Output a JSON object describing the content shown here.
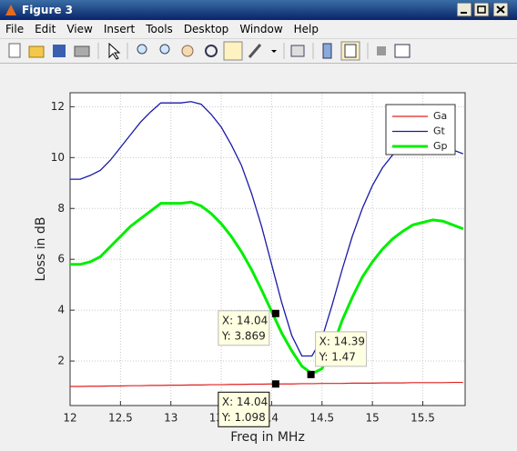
{
  "window": {
    "title": "Figure 3",
    "menu": [
      "File",
      "Edit",
      "View",
      "Insert",
      "Tools",
      "Desktop",
      "Window",
      "Help"
    ]
  },
  "chart_data": {
    "type": "line",
    "xlabel": "Freq in MHz",
    "ylabel": "Loss in dB",
    "x": [
      12,
      12.1,
      12.2,
      12.3,
      12.4,
      12.5,
      12.6,
      12.7,
      12.8,
      12.9,
      13,
      13.1,
      13.2,
      13.3,
      13.4,
      13.5,
      13.6,
      13.7,
      13.8,
      13.9,
      14,
      14.1,
      14.2,
      14.3,
      14.4,
      14.5,
      14.6,
      14.7,
      14.8,
      14.9,
      15,
      15.1,
      15.2,
      15.3,
      15.4,
      15.5,
      15.6,
      15.7,
      15.8,
      15.9
    ],
    "series": [
      {
        "name": "Ga",
        "color": "#e02020",
        "width": 1.2,
        "values": [
          1.0,
          1.0,
          1.01,
          1.01,
          1.02,
          1.02,
          1.03,
          1.03,
          1.04,
          1.04,
          1.05,
          1.05,
          1.06,
          1.06,
          1.07,
          1.07,
          1.08,
          1.08,
          1.09,
          1.09,
          1.098,
          1.1,
          1.1,
          1.11,
          1.11,
          1.12,
          1.12,
          1.12,
          1.13,
          1.13,
          1.13,
          1.14,
          1.14,
          1.14,
          1.15,
          1.15,
          1.15,
          1.15,
          1.16,
          1.16
        ]
      },
      {
        "name": "Gt",
        "color": "#1a1aa8",
        "width": 1.3,
        "values": [
          9.15,
          9.15,
          9.3,
          9.5,
          9.9,
          10.4,
          10.9,
          11.4,
          11.8,
          12.15,
          12.15,
          12.15,
          12.2,
          12.1,
          11.7,
          11.2,
          10.5,
          9.7,
          8.6,
          7.3,
          5.8,
          4.3,
          3.0,
          2.2,
          2.2,
          2.9,
          4.2,
          5.6,
          6.9,
          8.0,
          8.9,
          9.6,
          10.1,
          10.4,
          10.6,
          10.6,
          10.55,
          10.45,
          10.3,
          10.15
        ]
      },
      {
        "name": "Gp",
        "color": "#00ee00",
        "width": 3,
        "values": [
          5.8,
          5.8,
          5.9,
          6.1,
          6.5,
          6.9,
          7.3,
          7.6,
          7.9,
          8.2,
          8.2,
          8.2,
          8.25,
          8.1,
          7.8,
          7.4,
          6.9,
          6.3,
          5.6,
          4.8,
          3.95,
          3.1,
          2.4,
          1.8,
          1.5,
          1.7,
          2.5,
          3.6,
          4.5,
          5.3,
          5.9,
          6.4,
          6.8,
          7.1,
          7.35,
          7.45,
          7.55,
          7.5,
          7.35,
          7.2
        ]
      }
    ],
    "xlim": [
      12,
      15.92
    ],
    "ylim": [
      0.25,
      12.55
    ],
    "xticks": [
      12,
      12.5,
      13,
      13.5,
      14,
      14.5,
      15,
      15.5
    ],
    "yticks": [
      2,
      4,
      6,
      8,
      10,
      12
    ],
    "grid": true,
    "legend": "top-right",
    "datatips": [
      {
        "x": 14.04,
        "y": 3.869,
        "label": [
          "X: 14.04",
          "Y: 3.869"
        ]
      },
      {
        "x": 14.39,
        "y": 1.47,
        "label": [
          "X: 14.39",
          "Y: 1.47"
        ]
      },
      {
        "x": 14.04,
        "y": 1.098,
        "label": [
          "X: 14.04",
          "Y: 1.098"
        ]
      }
    ]
  }
}
